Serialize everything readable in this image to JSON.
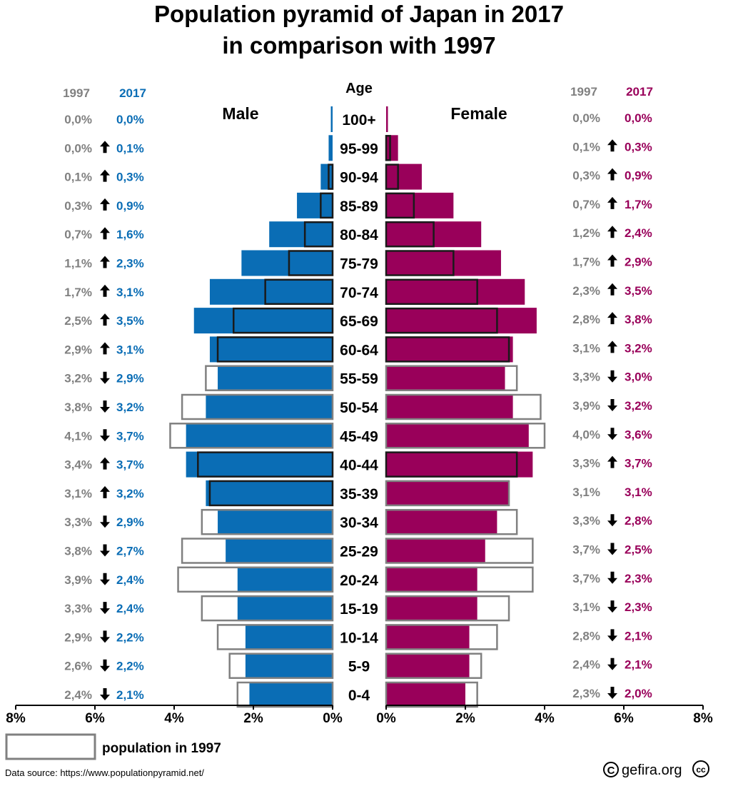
{
  "chart_data": {
    "type": "bar",
    "title_line1": "Population pyramid of Japan in 2017",
    "title_line2": "in comparison with 1997",
    "age_header": "Age",
    "male_label": "Male",
    "female_label": "Female",
    "year_old": "1997",
    "year_new": "2017",
    "categories": [
      "100+",
      "95-99",
      "90-94",
      "85-89",
      "80-84",
      "75-79",
      "70-74",
      "65-69",
      "60-64",
      "55-59",
      "50-54",
      "45-49",
      "40-44",
      "35-39",
      "30-34",
      "25-29",
      "20-24",
      "15-19",
      "10-14",
      "5-9",
      "0-4"
    ],
    "series": [
      {
        "name": "Male 1997",
        "values": [
          0.0,
          0.0,
          0.1,
          0.3,
          0.7,
          1.1,
          1.7,
          2.5,
          2.9,
          3.2,
          3.8,
          4.1,
          3.4,
          3.1,
          3.3,
          3.8,
          3.9,
          3.3,
          2.9,
          2.6,
          2.4
        ]
      },
      {
        "name": "Male 2017",
        "values": [
          0.0,
          0.1,
          0.3,
          0.9,
          1.6,
          2.3,
          3.1,
          3.5,
          3.1,
          2.9,
          3.2,
          3.7,
          3.7,
          3.2,
          2.9,
          2.7,
          2.4,
          2.4,
          2.2,
          2.2,
          2.1
        ]
      },
      {
        "name": "Female 1997",
        "values": [
          0.0,
          0.1,
          0.3,
          0.7,
          1.2,
          1.7,
          2.3,
          2.8,
          3.1,
          3.3,
          3.9,
          4.0,
          3.3,
          3.1,
          3.3,
          3.7,
          3.7,
          3.1,
          2.8,
          2.4,
          2.3
        ]
      },
      {
        "name": "Female 2017",
        "values": [
          0.0,
          0.3,
          0.9,
          1.7,
          2.4,
          2.9,
          3.5,
          3.8,
          3.2,
          3.0,
          3.2,
          3.6,
          3.7,
          3.1,
          2.8,
          2.5,
          2.3,
          2.3,
          2.1,
          2.1,
          2.0
        ]
      }
    ],
    "male_1997_labels": [
      "0,0%",
      "0,0%",
      "0,1%",
      "0,3%",
      "0,7%",
      "1,1%",
      "1,7%",
      "2,5%",
      "2,9%",
      "3,2%",
      "3,8%",
      "4,1%",
      "3,4%",
      "3,1%",
      "3,3%",
      "3,8%",
      "3,9%",
      "3,3%",
      "2,9%",
      "2,6%",
      "2,4%"
    ],
    "male_2017_labels": [
      "0,0%",
      "0,1%",
      "0,3%",
      "0,9%",
      "1,6%",
      "2,3%",
      "3,1%",
      "3,5%",
      "3,1%",
      "2,9%",
      "3,2%",
      "3,7%",
      "3,7%",
      "3,2%",
      "2,9%",
      "2,7%",
      "2,4%",
      "2,4%",
      "2,2%",
      "2,2%",
      "2,1%"
    ],
    "female_1997_labels": [
      "0,0%",
      "0,1%",
      "0,3%",
      "0,7%",
      "1,2%",
      "1,7%",
      "2,3%",
      "2,8%",
      "3,1%",
      "3,3%",
      "3,9%",
      "4,0%",
      "3,3%",
      "3,1%",
      "3,3%",
      "3,7%",
      "3,7%",
      "3,1%",
      "2,8%",
      "2,4%",
      "2,3%"
    ],
    "female_2017_labels": [
      "0,0%",
      "0,3%",
      "0,9%",
      "1,7%",
      "2,4%",
      "2,9%",
      "3,5%",
      "3,8%",
      "3,2%",
      "3,0%",
      "3,2%",
      "3,6%",
      "3,7%",
      "3,1%",
      "2,8%",
      "2,5%",
      "2,3%",
      "2,3%",
      "2,1%",
      "2,1%",
      "2,0%"
    ],
    "male_trend": [
      "none",
      "up",
      "up",
      "up",
      "up",
      "up",
      "up",
      "up",
      "up",
      "down",
      "down",
      "down",
      "up",
      "up",
      "down",
      "down",
      "down",
      "down",
      "down",
      "down",
      "down"
    ],
    "female_trend": [
      "none",
      "up",
      "up",
      "up",
      "up",
      "up",
      "up",
      "up",
      "up",
      "down",
      "down",
      "down",
      "up",
      "none",
      "down",
      "down",
      "down",
      "down",
      "down",
      "down",
      "down"
    ],
    "x_ticks_male": [
      "8%",
      "6%",
      "4%",
      "2%",
      "0%"
    ],
    "x_ticks_female": [
      "0%",
      "2%",
      "4%",
      "6%",
      "8%"
    ],
    "xlim": [
      0,
      8
    ],
    "legend_label": "population in 1997",
    "source": "Data source: https://www.populationpyramid.net/",
    "brand": "gefira.org",
    "colors": {
      "male": "#0a6db5",
      "female": "#99005a",
      "outline_1997": "#808080",
      "label_1997": "#808080",
      "axis": "#000000"
    }
  }
}
